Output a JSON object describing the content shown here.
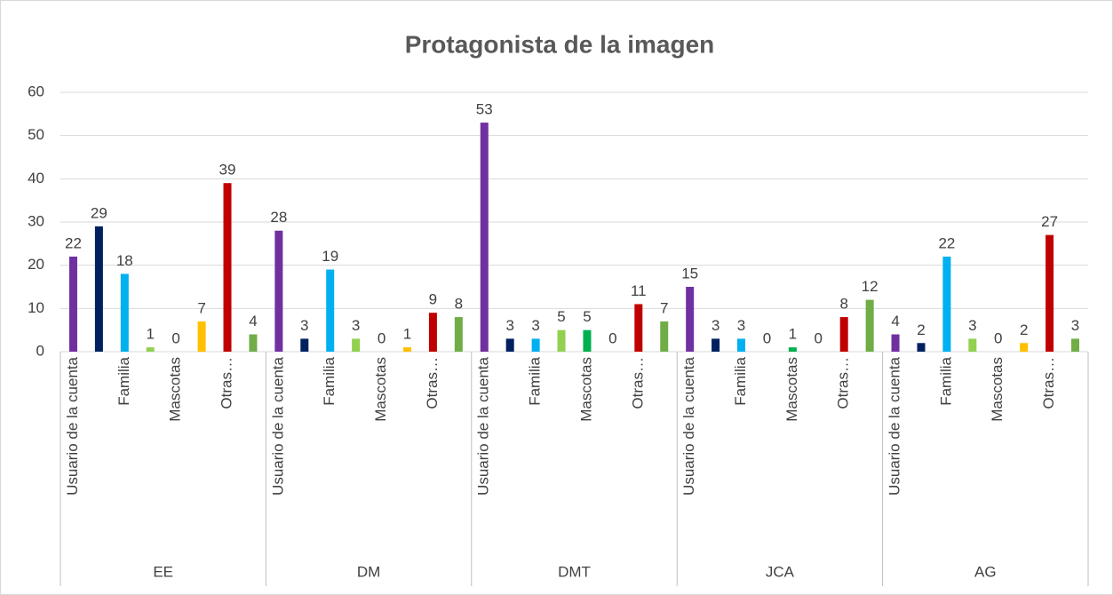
{
  "chart_data": {
    "type": "bar",
    "title": "Protagonista de la imagen",
    "groups": [
      "EE",
      "DM",
      "DMT",
      "JCA",
      "AG"
    ],
    "categories": [
      "Usuario de la cuenta",
      null,
      "Familia",
      null,
      "Mascotas",
      null,
      "Otras…",
      null
    ],
    "colors": [
      "#7030a0",
      "#002060",
      "#00b0f0",
      "#92d050",
      "#00b050",
      "#ffc000",
      "#c00000",
      "#70ad47"
    ],
    "values": [
      [
        22,
        29,
        18,
        1,
        0,
        7,
        39,
        4
      ],
      [
        28,
        3,
        19,
        3,
        0,
        1,
        9,
        8
      ],
      [
        53,
        3,
        3,
        5,
        5,
        0,
        11,
        7
      ],
      [
        15,
        3,
        3,
        0,
        1,
        0,
        8,
        12
      ],
      [
        4,
        2,
        22,
        3,
        0,
        2,
        27,
        3
      ]
    ],
    "ylim": [
      0,
      60
    ],
    "yticks": [
      0,
      10,
      20,
      30,
      40,
      50,
      60
    ],
    "grid": true
  }
}
